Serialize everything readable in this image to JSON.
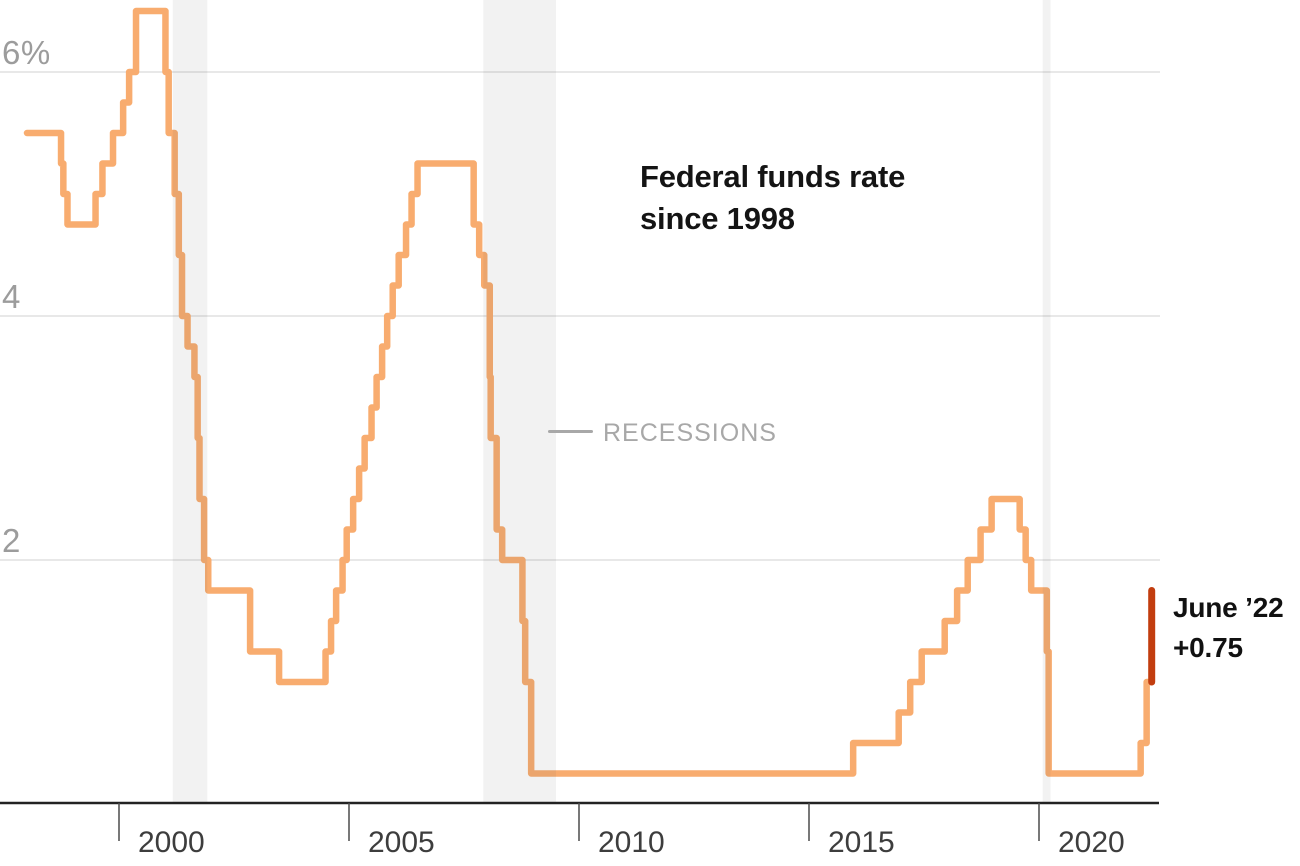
{
  "title": {
    "line1": "Federal funds rate",
    "line2": "since 1998"
  },
  "legend": {
    "label": "RECESSIONS"
  },
  "annotation": {
    "line1": "June ’22",
    "line2": "+0.75"
  },
  "colors": {
    "line": "#f8ac6f",
    "highlight": "#c23d0f",
    "grid": "#d9d9d9",
    "axis": "#222222",
    "tick": "#4a4a4a",
    "band": "rgba(90,90,90,0.08)",
    "y_label": "#9c9c9c",
    "x_label": "#3d3d3d",
    "legend_gray": "#a8a8a8",
    "title_black": "#141414"
  },
  "chart_data": {
    "type": "line",
    "subtype": "step",
    "title": "Federal funds rate since 1998",
    "ylabel": "percent",
    "y_ticks": [
      {
        "value": 6,
        "label": "6%"
      },
      {
        "value": 4,
        "label": "4"
      },
      {
        "value": 2,
        "label": "2"
      }
    ],
    "x_ticks": [
      {
        "value": 2000,
        "label": "2000"
      },
      {
        "value": 2005,
        "label": "2005"
      },
      {
        "value": 2010,
        "label": "2010"
      },
      {
        "value": 2015,
        "label": "2015"
      },
      {
        "value": 2020,
        "label": "2020"
      }
    ],
    "x_range": [
      1998.0,
      2022.6
    ],
    "y_range": [
      0,
      6.8
    ],
    "grid": "horizontal-only",
    "legend_position": "middle-left-of-plot",
    "steps": [
      {
        "year": 1998.0,
        "rate": 5.5
      },
      {
        "year": 1998.74,
        "rate": 5.25
      },
      {
        "year": 1998.79,
        "rate": 5.0
      },
      {
        "year": 1998.88,
        "rate": 4.75
      },
      {
        "year": 1999.49,
        "rate": 5.0
      },
      {
        "year": 1999.64,
        "rate": 5.25
      },
      {
        "year": 1999.87,
        "rate": 5.5
      },
      {
        "year": 2000.09,
        "rate": 5.75
      },
      {
        "year": 2000.22,
        "rate": 6.0
      },
      {
        "year": 2000.37,
        "rate": 6.5
      },
      {
        "year": 2001.01,
        "rate": 6.0
      },
      {
        "year": 2001.08,
        "rate": 5.5
      },
      {
        "year": 2001.21,
        "rate": 5.0
      },
      {
        "year": 2001.3,
        "rate": 4.5
      },
      {
        "year": 2001.37,
        "rate": 4.0
      },
      {
        "year": 2001.49,
        "rate": 3.75
      },
      {
        "year": 2001.64,
        "rate": 3.5
      },
      {
        "year": 2001.71,
        "rate": 3.0
      },
      {
        "year": 2001.75,
        "rate": 2.5
      },
      {
        "year": 2001.85,
        "rate": 2.0
      },
      {
        "year": 2001.94,
        "rate": 1.75
      },
      {
        "year": 2002.85,
        "rate": 1.25
      },
      {
        "year": 2003.48,
        "rate": 1.0
      },
      {
        "year": 2004.49,
        "rate": 1.25
      },
      {
        "year": 2004.61,
        "rate": 1.5
      },
      {
        "year": 2004.72,
        "rate": 1.75
      },
      {
        "year": 2004.86,
        "rate": 2.0
      },
      {
        "year": 2004.95,
        "rate": 2.25
      },
      {
        "year": 2005.09,
        "rate": 2.5
      },
      {
        "year": 2005.22,
        "rate": 2.75
      },
      {
        "year": 2005.34,
        "rate": 3.0
      },
      {
        "year": 2005.49,
        "rate": 3.25
      },
      {
        "year": 2005.6,
        "rate": 3.5
      },
      {
        "year": 2005.72,
        "rate": 3.75
      },
      {
        "year": 2005.83,
        "rate": 4.0
      },
      {
        "year": 2005.95,
        "rate": 4.25
      },
      {
        "year": 2006.08,
        "rate": 4.5
      },
      {
        "year": 2006.24,
        "rate": 4.75
      },
      {
        "year": 2006.36,
        "rate": 5.0
      },
      {
        "year": 2006.49,
        "rate": 5.25
      },
      {
        "year": 2007.71,
        "rate": 4.75
      },
      {
        "year": 2007.83,
        "rate": 4.5
      },
      {
        "year": 2007.94,
        "rate": 4.25
      },
      {
        "year": 2008.06,
        "rate": 3.5
      },
      {
        "year": 2008.08,
        "rate": 3.0
      },
      {
        "year": 2008.21,
        "rate": 2.25
      },
      {
        "year": 2008.33,
        "rate": 2.0
      },
      {
        "year": 2008.77,
        "rate": 1.5
      },
      {
        "year": 2008.83,
        "rate": 1.0
      },
      {
        "year": 2008.96,
        "rate": 0.25
      },
      {
        "year": 2015.96,
        "rate": 0.5
      },
      {
        "year": 2016.95,
        "rate": 0.75
      },
      {
        "year": 2017.2,
        "rate": 1.0
      },
      {
        "year": 2017.45,
        "rate": 1.25
      },
      {
        "year": 2017.95,
        "rate": 1.5
      },
      {
        "year": 2018.22,
        "rate": 1.75
      },
      {
        "year": 2018.45,
        "rate": 2.0
      },
      {
        "year": 2018.73,
        "rate": 2.25
      },
      {
        "year": 2018.97,
        "rate": 2.5
      },
      {
        "year": 2019.58,
        "rate": 2.25
      },
      {
        "year": 2019.71,
        "rate": 2.0
      },
      {
        "year": 2019.83,
        "rate": 1.75
      },
      {
        "year": 2020.17,
        "rate": 1.25
      },
      {
        "year": 2020.21,
        "rate": 0.25
      },
      {
        "year": 2022.21,
        "rate": 0.5
      },
      {
        "year": 2022.34,
        "rate": 1.0
      }
    ],
    "highlight": {
      "label": "June ’22 +0.75",
      "year": 2022.45,
      "from_rate": 1.0,
      "to_rate": 1.75
    },
    "recessions": [
      {
        "start": 2001.17,
        "end": 2001.92
      },
      {
        "start": 2007.92,
        "end": 2009.5
      },
      {
        "start": 2020.08,
        "end": 2020.25
      }
    ]
  }
}
